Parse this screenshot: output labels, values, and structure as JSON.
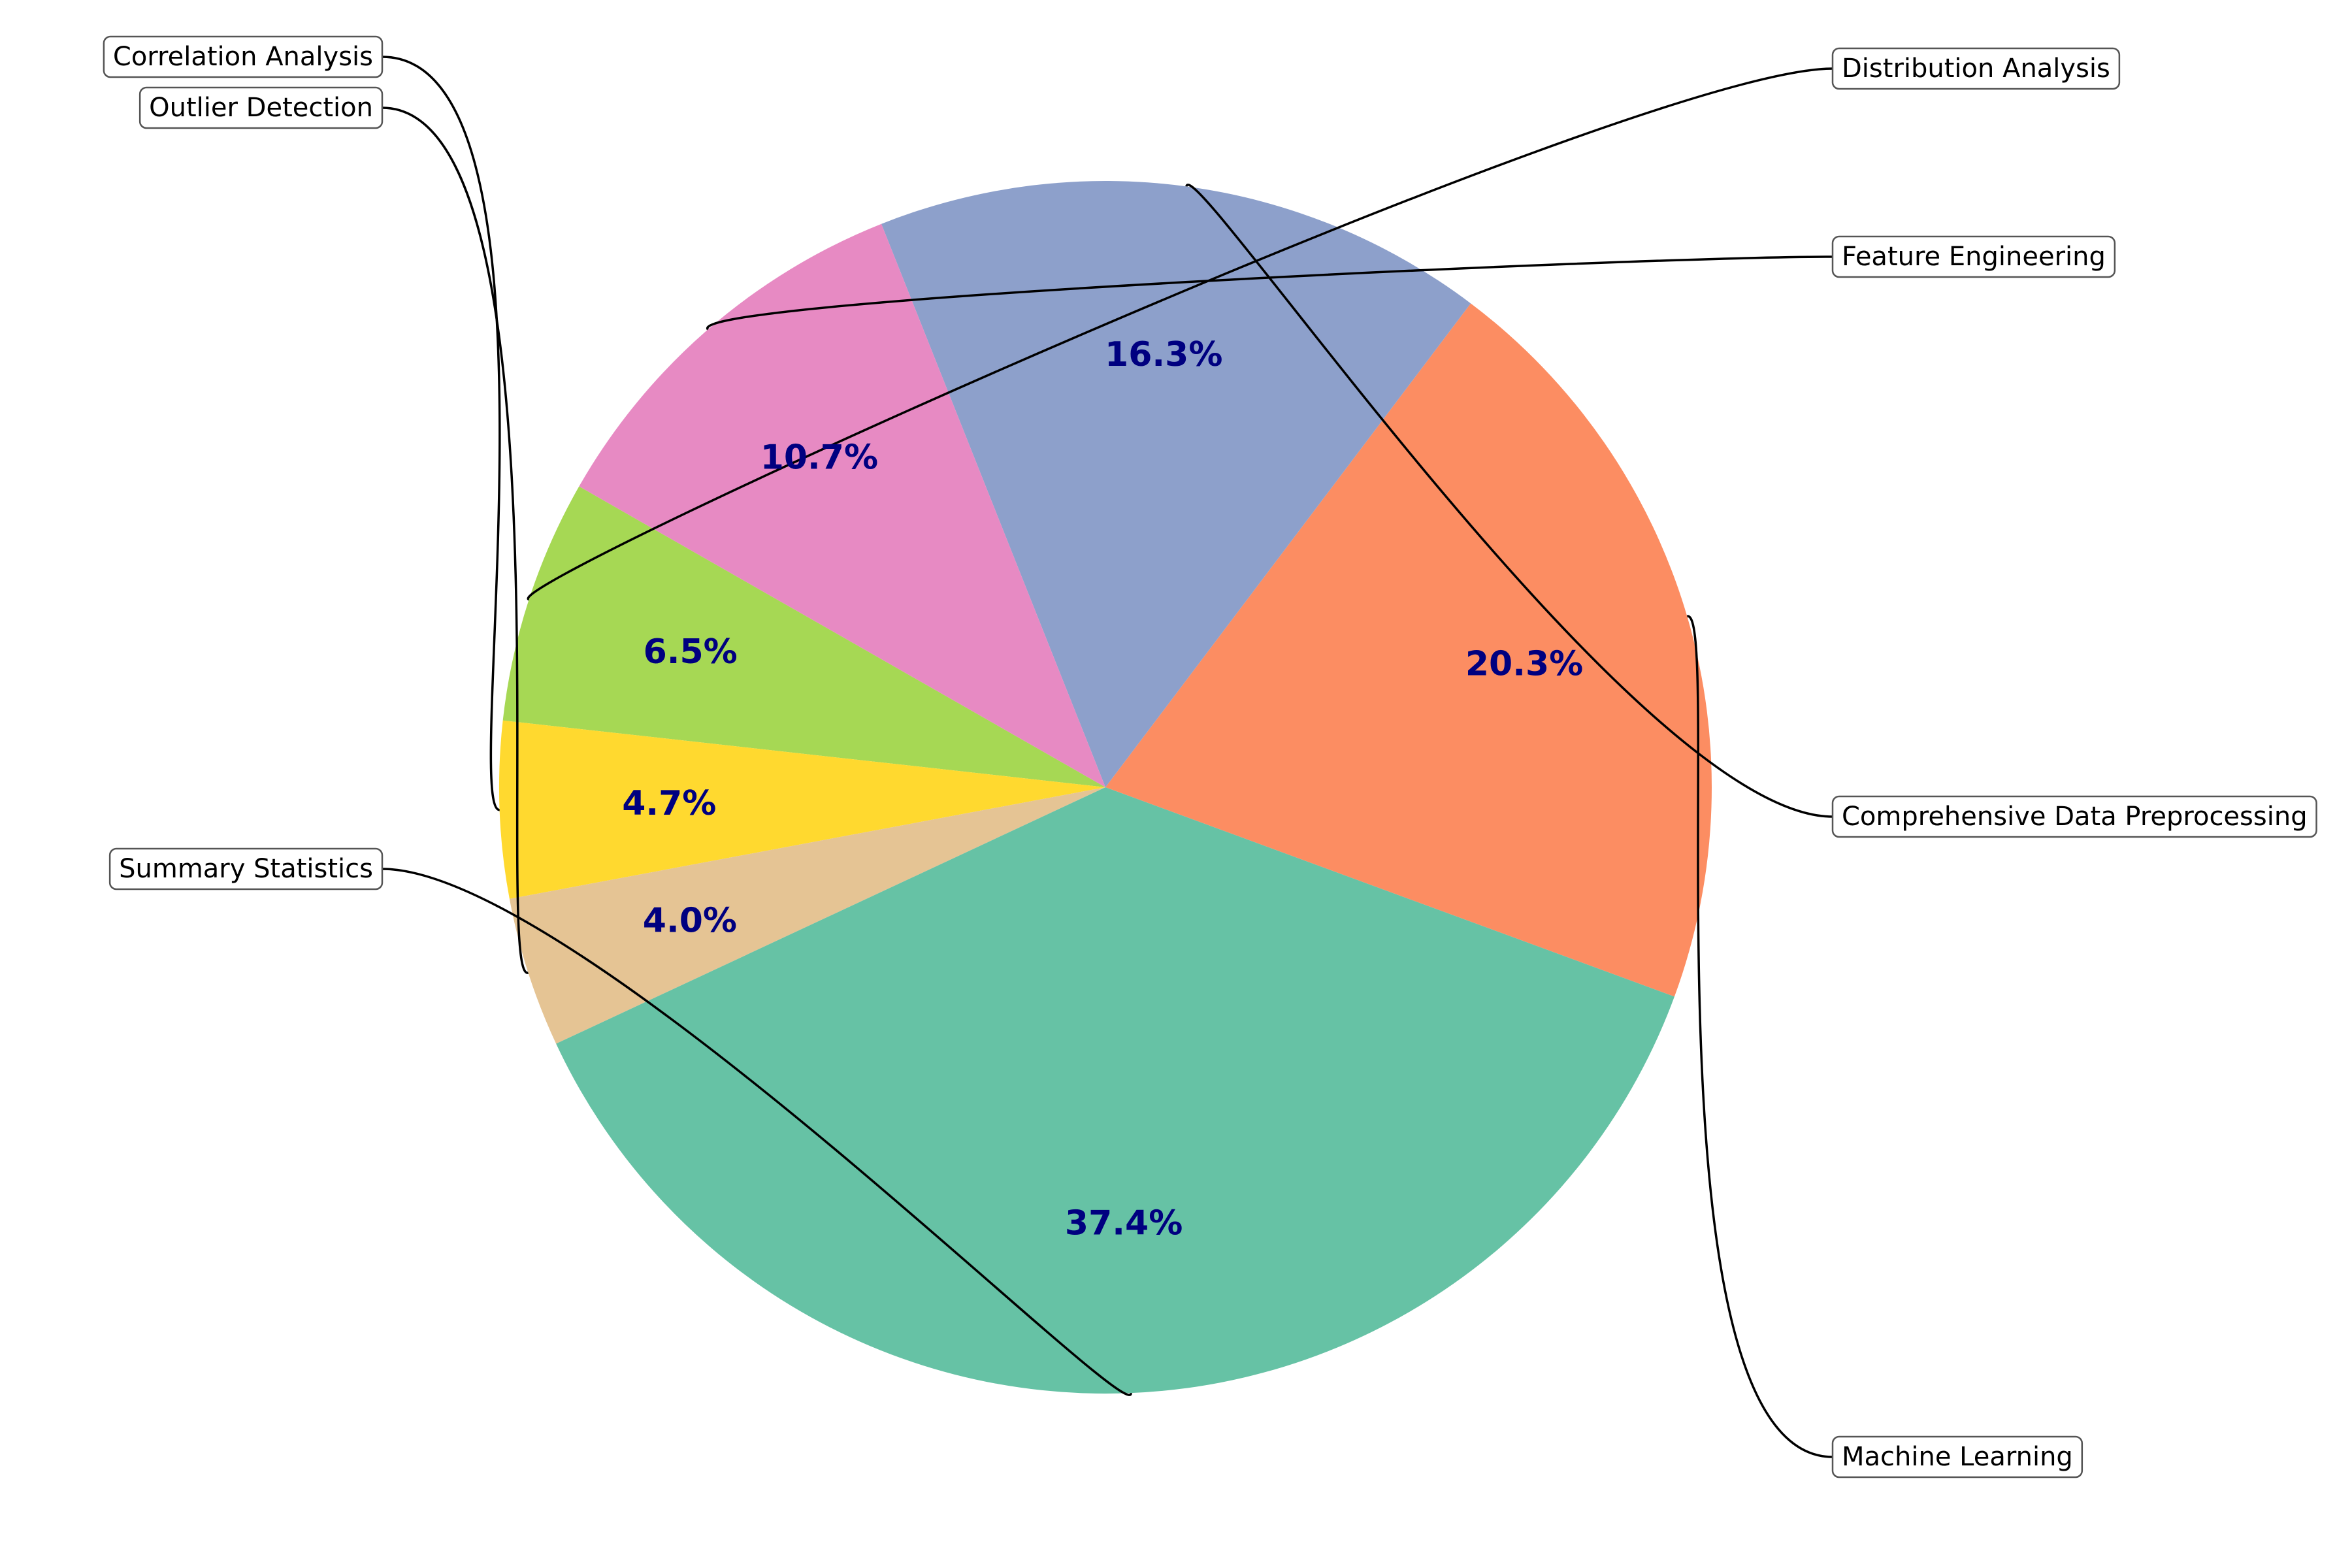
{
  "chart_data": {
    "type": "pie",
    "title": "",
    "start_angle_deg": -20.2,
    "direction": "counterclockwise",
    "slices": [
      {
        "label": "Machine Learning",
        "percent": 20.3,
        "pct_label": "20.3%",
        "color": "#fc8d62"
      },
      {
        "label": "Comprehensive Data Preprocessing",
        "percent": 16.3,
        "pct_label": "16.3%",
        "color": "#8da0cb"
      },
      {
        "label": "Feature Engineering",
        "percent": 10.7,
        "pct_label": "10.7%",
        "color": "#e78ac3"
      },
      {
        "label": "Distribution Analysis",
        "percent": 6.5,
        "pct_label": "6.5%",
        "color": "#a6d854"
      },
      {
        "label": "Correlation Analysis",
        "percent": 4.7,
        "pct_label": "4.7%",
        "color": "#ffd92f"
      },
      {
        "label": "Outlier Detection",
        "percent": 4.0,
        "pct_label": "4.0%",
        "color": "#e5c494"
      },
      {
        "label": "Summary Statistics",
        "percent": 37.4,
        "pct_label": "37.4%",
        "color": "#66c2a5"
      }
    ],
    "percent_label_color": "#000080"
  }
}
